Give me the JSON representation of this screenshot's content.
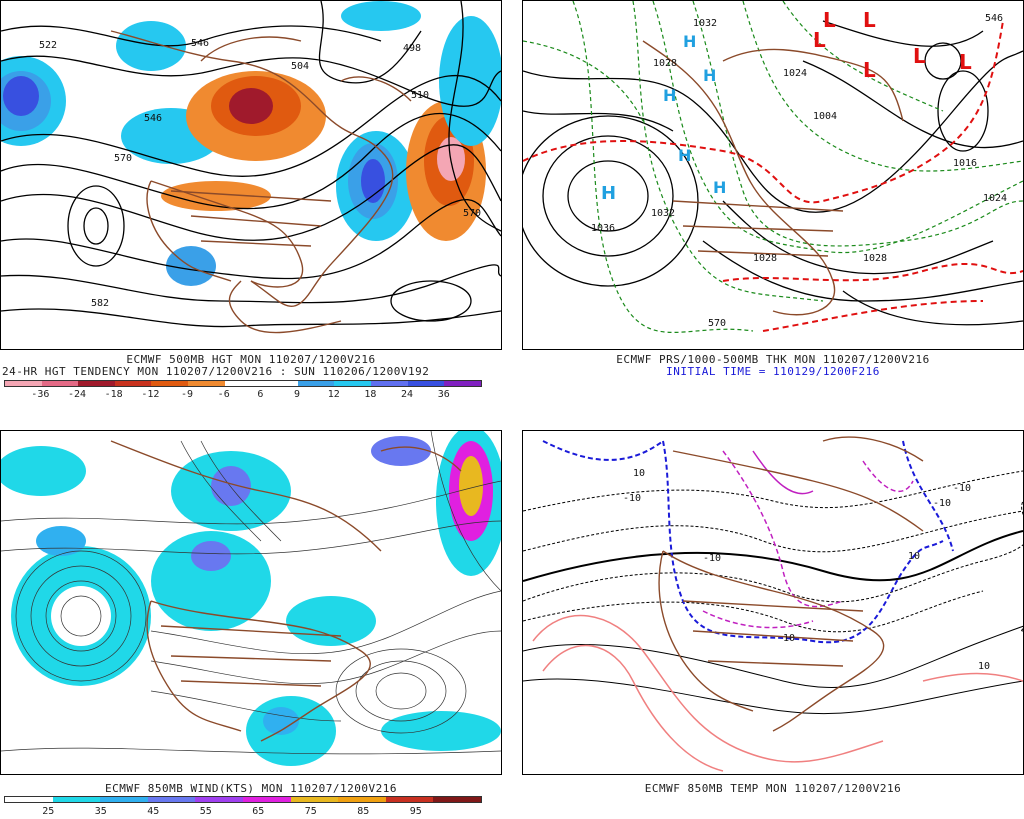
{
  "panels": {
    "p500": {
      "caption_line1": "ECMWF 500MB HGT MON 110207/1200V216",
      "caption_line2": "24-HR HGT TENDENCY MON 110207/1200V216 : SUN 110206/1200V192",
      "colorbar_colors": [
        "#f4a6b4",
        "#e46a86",
        "#a01a2c",
        "#c8321e",
        "#e05a10",
        "#f08a30",
        "#ffffff",
        "#ffffff",
        "#3aa0e8",
        "#26c8f0",
        "#6070f0",
        "#3850e0",
        "#8020c0"
      ],
      "colorbar_ticks": [
        "-36",
        "-24",
        "-18",
        "-12",
        "-9",
        "-6",
        "6",
        "9",
        "12",
        "18",
        "24",
        "36"
      ],
      "contour_labels": [
        "522",
        "546",
        "570",
        "582",
        "510",
        "498",
        "504",
        "570",
        "546"
      ]
    },
    "pmslp": {
      "caption_line1": "ECMWF PRS/1000-500MB THK MON 110207/1200V216",
      "caption_line2": "INITIAL TIME = 110129/1200F216",
      "high_symbol": "H",
      "low_symbol": "L",
      "contour_labels": [
        "1036",
        "1032",
        "1028",
        "1028",
        "1024",
        "1004",
        "1032",
        "1028",
        "1016",
        "1024",
        "570",
        "546"
      ]
    },
    "p850wind": {
      "caption_line1": "ECMWF 850MB WIND(KTS) MON 110207/1200V216",
      "colorbar_colors": [
        "#ffffff",
        "#20d8e8",
        "#30b0f0",
        "#6878f0",
        "#a040f0",
        "#e020e0",
        "#e8b820",
        "#f0a010",
        "#c83020",
        "#801818"
      ],
      "colorbar_ticks": [
        "25",
        "35",
        "45",
        "55",
        "65",
        "75",
        "85",
        "95"
      ]
    },
    "p850temp": {
      "caption_line1": "ECMWF 850MB TEMP MON 110207/1200V216",
      "contour_labels": [
        "10",
        "-10",
        "-10",
        "-10",
        "10",
        "-10",
        "10",
        "10"
      ]
    }
  },
  "colors": {
    "height_contour": "#000000",
    "coastline": "#8b4a2a",
    "thickness_contour": "#1a8a1a",
    "thickness_570": "#e01010",
    "high_marker": "#20a0e0",
    "low_marker": "#e01010",
    "temp_warm": "#f08080",
    "temp_zero": "#1a1ad8",
    "temp_cold": "#c020c0"
  }
}
